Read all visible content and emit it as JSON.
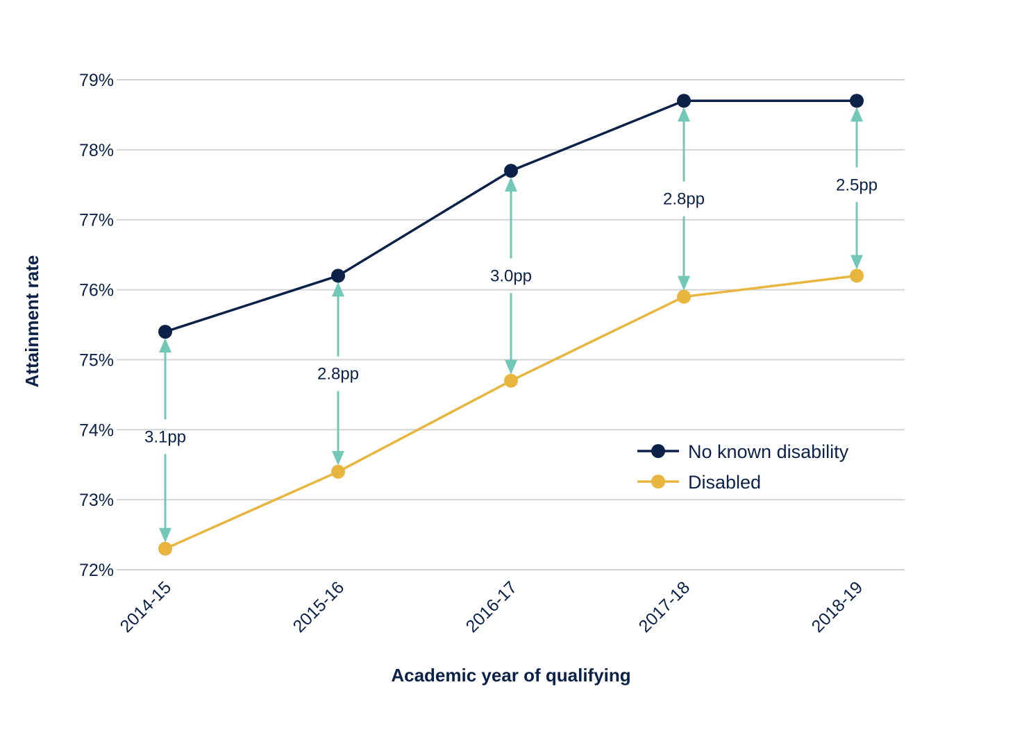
{
  "chart_data": {
    "type": "line",
    "title": "",
    "xlabel": "Academic year of qualifying",
    "ylabel": "Attainment rate",
    "categories": [
      "2014-15",
      "2015-16",
      "2016-17",
      "2017-18",
      "2018-19"
    ],
    "ylim": [
      72,
      79
    ],
    "yticks": [
      72,
      73,
      74,
      75,
      76,
      77,
      78,
      79
    ],
    "ytick_labels": [
      "72%",
      "73%",
      "74%",
      "75%",
      "76%",
      "77%",
      "78%",
      "79%"
    ],
    "grid": true,
    "legend_position": "bottom-right",
    "series": [
      {
        "name": "No known disability",
        "color": "#0b2148",
        "values": [
          75.4,
          76.2,
          77.7,
          78.7,
          78.7
        ]
      },
      {
        "name": "Disabled",
        "color": "#e8b53e",
        "values": [
          72.3,
          73.4,
          74.7,
          75.9,
          76.2
        ]
      }
    ],
    "annotations": {
      "color": "#72c7b7",
      "gaps": [
        {
          "category": "2014-15",
          "label": "3.1pp",
          "label_value": 73.9
        },
        {
          "category": "2015-16",
          "label": "2.8pp",
          "label_value": 74.8
        },
        {
          "category": "2016-17",
          "label": "3.0pp",
          "label_value": 76.2
        },
        {
          "category": "2017-18",
          "label": "2.8pp",
          "label_value": 77.3
        },
        {
          "category": "2018-19",
          "label": "2.5pp",
          "label_value": 77.5
        }
      ]
    }
  }
}
